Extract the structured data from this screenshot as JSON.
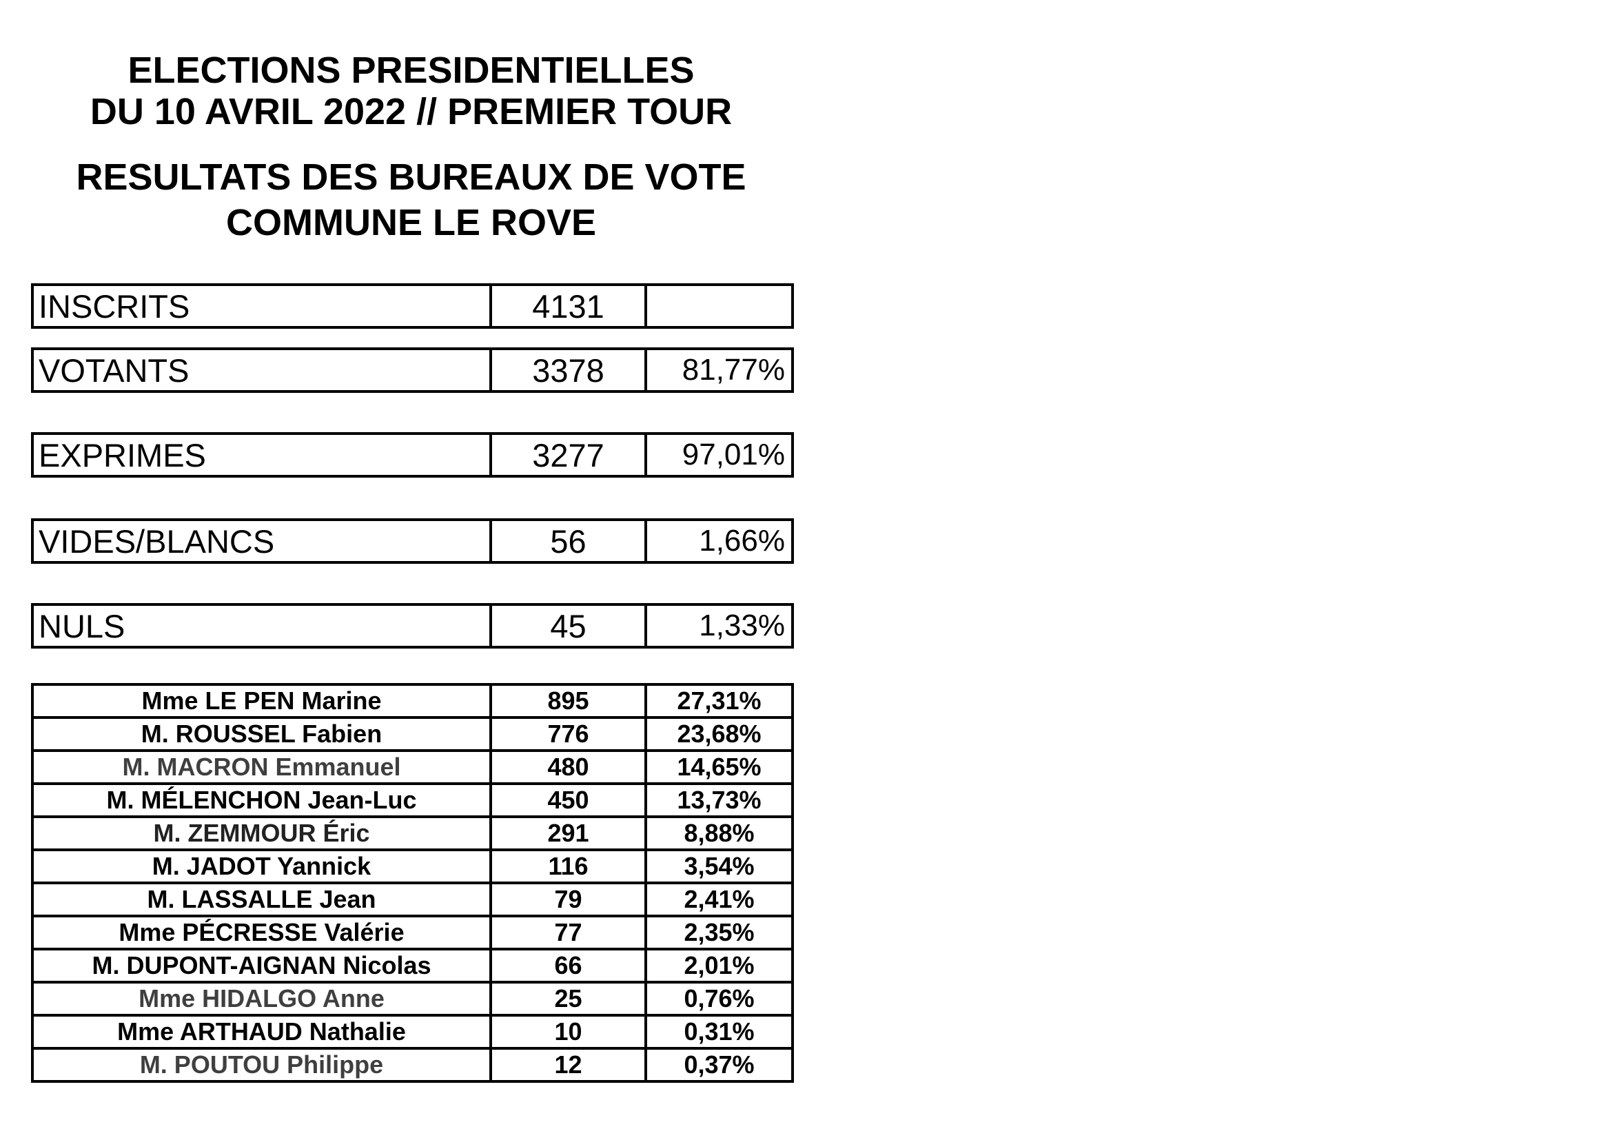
{
  "title": {
    "block1": "ELECTIONS PRESIDENTIELLES\nDU 10 AVRIL 2022 // PREMIER TOUR",
    "block2": "RESULTATS DES BUREAUX DE VOTE\nCOMMUNE LE ROVE"
  },
  "summary": [
    {
      "label": "INSCRITS",
      "value": "4131",
      "percent": ""
    },
    {
      "label": "VOTANTS",
      "value": "3378",
      "percent": "81,77%"
    },
    {
      "label": "EXPRIMES",
      "value": "3277",
      "percent": "97,01%"
    },
    {
      "label": "VIDES/BLANCS",
      "value": "56",
      "percent": "1,66%"
    },
    {
      "label": "NULS",
      "value": "45",
      "percent": "1,33%"
    }
  ],
  "candidates": [
    {
      "name": "Mme LE PEN Marine",
      "votes": "895",
      "percent": "27,31%",
      "name_color": "#000000"
    },
    {
      "name": "M. ROUSSEL Fabien",
      "votes": "776",
      "percent": "23,68%",
      "name_color": "#000000"
    },
    {
      "name": "M. MACRON Emmanuel",
      "votes": "480",
      "percent": "14,65%",
      "name_color": "#3f3f3f"
    },
    {
      "name": "M. MÉLENCHON Jean-Luc",
      "votes": "450",
      "percent": "13,73%",
      "name_color": "#000000"
    },
    {
      "name": "M. ZEMMOUR Éric",
      "votes": "291",
      "percent": "8,88%",
      "name_color": "#222222"
    },
    {
      "name": "M. JADOT Yannick",
      "votes": "116",
      "percent": "3,54%",
      "name_color": "#000000"
    },
    {
      "name": "M. LASSALLE Jean",
      "votes": "79",
      "percent": "2,41%",
      "name_color": "#000000"
    },
    {
      "name": "Mme PÉCRESSE Valérie",
      "votes": "77",
      "percent": "2,35%",
      "name_color": "#000000"
    },
    {
      "name": "M. DUPONT-AIGNAN Nicolas",
      "votes": "66",
      "percent": "2,01%",
      "name_color": "#000000"
    },
    {
      "name": "Mme HIDALGO Anne",
      "votes": "25",
      "percent": "0,76%",
      "name_color": "#3f3f3f"
    },
    {
      "name": "Mme ARTHAUD Nathalie",
      "votes": "10",
      "percent": "0,31%",
      "name_color": "#000000"
    },
    {
      "name": "M. POUTOU Philippe",
      "votes": "12",
      "percent": "0,37%",
      "name_color": "#3f3f3f"
    }
  ],
  "colors": {
    "text": "#000000",
    "muted_name": "#3f3f3f",
    "border": "#000000",
    "background": "#ffffff"
  }
}
